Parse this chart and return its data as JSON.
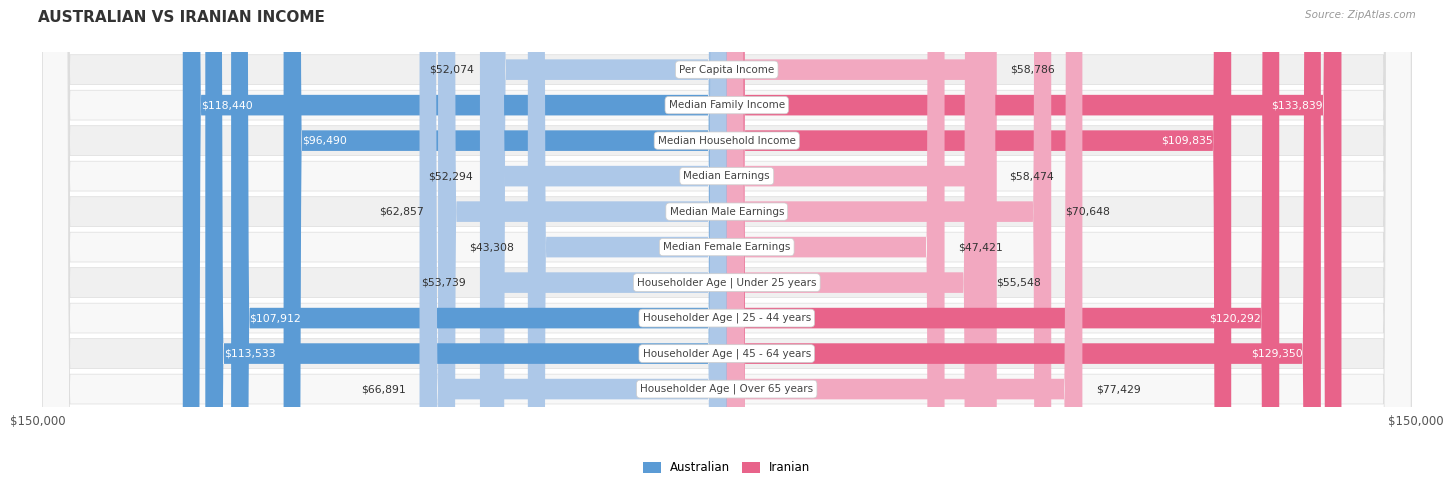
{
  "title": "AUSTRALIAN VS IRANIAN INCOME",
  "source": "Source: ZipAtlas.com",
  "categories": [
    "Per Capita Income",
    "Median Family Income",
    "Median Household Income",
    "Median Earnings",
    "Median Male Earnings",
    "Median Female Earnings",
    "Householder Age | Under 25 years",
    "Householder Age | 25 - 44 years",
    "Householder Age | 45 - 64 years",
    "Householder Age | Over 65 years"
  ],
  "australian_values": [
    52074,
    118440,
    96490,
    52294,
    62857,
    43308,
    53739,
    107912,
    113533,
    66891
  ],
  "iranian_values": [
    58786,
    133839,
    109835,
    58474,
    70648,
    47421,
    55548,
    120292,
    129350,
    77429
  ],
  "max_value": 150000,
  "aus_color_dark": "#5b9bd5",
  "aus_color_light": "#adc8e8",
  "iran_color_dark": "#e8638a",
  "iran_color_light": "#f2a8c0",
  "aus_text_threshold": 85000,
  "iran_text_threshold": 85000,
  "background_color": "#ffffff",
  "row_bg_even": "#f0f0f0",
  "row_bg_odd": "#f8f8f8",
  "title_color": "#333333",
  "source_color": "#999999",
  "label_color": "#444444",
  "value_color_dark": "#333333",
  "value_color_white": "#ffffff",
  "axis_label_left": "$150,000",
  "axis_label_right": "$150,000"
}
